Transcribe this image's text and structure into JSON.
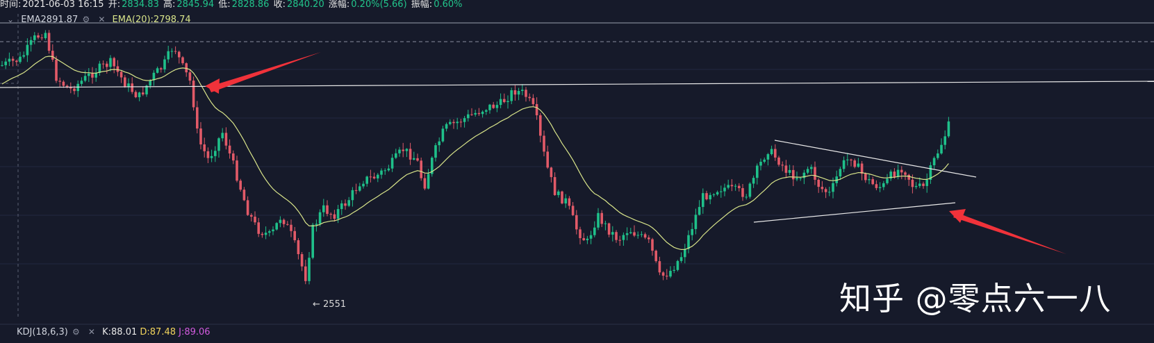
{
  "info_bar": {
    "time_label": "时间:",
    "time_value": "2021-06-03 16:15",
    "open_label": "开:",
    "open_value": "2834.83",
    "high_label": "高:",
    "high_value": "2845.94",
    "low_label": "低:",
    "low_value": "2828.86",
    "close_label": "收:",
    "close_value": "2840.20",
    "change_label": "涨幅:",
    "change_value": "0.20%(5.66)",
    "amplitude_label": "振幅:",
    "amplitude_value": "0.60%"
  },
  "ema_legend": {
    "ema_label": "EMA2891.87",
    "ema20_label": "EMA(20):2798.74"
  },
  "kdj_legend": {
    "name": "KDJ(18,6,3)",
    "k": "K:88.01",
    "d": "D:87.48",
    "j": "J:89.06"
  },
  "low_marker": "← 2551",
  "watermark": "知乎 @零点六一八",
  "colors": {
    "background": "#161a2a",
    "up": "#1fc08a",
    "down": "#e25a68",
    "ema20": "#d8e48a",
    "arrow": "#f0323a",
    "trendline": "#e9e9e9"
  },
  "chart_data": {
    "type": "candlestick",
    "title": "",
    "series": [
      {
        "name": "EMA(20)",
        "last": 2798.74
      }
    ],
    "annotations": [
      "← 2551"
    ],
    "drawings": [
      "horizontal line near 2900",
      "converging triangle (symmetric) trendlines",
      "two red arrows"
    ],
    "y_key_levels": {
      "period_low": 2551
    },
    "last_bar": {
      "time": "2021-06-03 16:15",
      "open": 2834.83,
      "high": 2845.94,
      "low": 2828.86,
      "close": 2840.2
    }
  }
}
